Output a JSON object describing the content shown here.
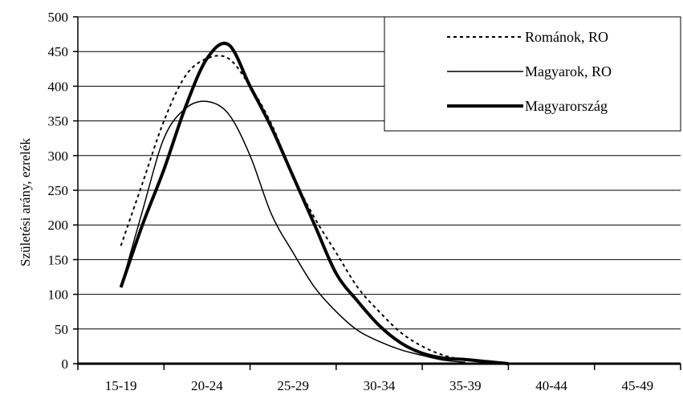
{
  "chart_data": {
    "type": "line",
    "title": "",
    "xlabel": "",
    "ylabel": "Születési arány, ezrelék",
    "categories": [
      "15-19",
      "20-24",
      "25-29",
      "30-34",
      "35-39",
      "40-44",
      "45-49"
    ],
    "x": [
      0,
      0.25,
      0.5,
      0.75,
      1,
      1.25,
      1.5,
      1.75,
      2,
      2.25,
      2.5,
      2.75,
      3,
      3.25,
      3.5,
      3.75,
      4,
      4.25,
      4.5,
      4.75,
      5,
      5.25,
      5.5,
      5.75,
      6
    ],
    "ylim": [
      0,
      500
    ],
    "yticks": [
      0,
      50,
      100,
      150,
      200,
      250,
      300,
      350,
      400,
      450,
      500
    ],
    "grid": true,
    "legend_position": "top-right",
    "series": [
      {
        "name": "Románok, RO",
        "style": "dashed",
        "values": [
          170,
          260,
          350,
          415,
          440,
          440,
          400,
          345,
          270,
          210,
          160,
          110,
          75,
          45,
          25,
          12,
          5,
          null,
          null,
          null,
          null,
          null,
          null,
          null,
          null
        ]
      },
      {
        "name": "Magyarok, RO",
        "style": "thin",
        "values": [
          110,
          220,
          325,
          368,
          378,
          360,
          300,
          215,
          160,
          110,
          75,
          48,
          32,
          20,
          12,
          5,
          2,
          null,
          null,
          null,
          null,
          null,
          null,
          null,
          null
        ]
      },
      {
        "name": "Magyarország",
        "style": "thick",
        "values": [
          110,
          200,
          280,
          370,
          440,
          460,
          400,
          340,
          270,
          200,
          130,
          90,
          55,
          30,
          15,
          8,
          6,
          3,
          0,
          null,
          null,
          null,
          null,
          null,
          null
        ]
      }
    ],
    "colors": {
      "line": "#000000",
      "grid": "#000000",
      "background": "#ffffff"
    }
  }
}
